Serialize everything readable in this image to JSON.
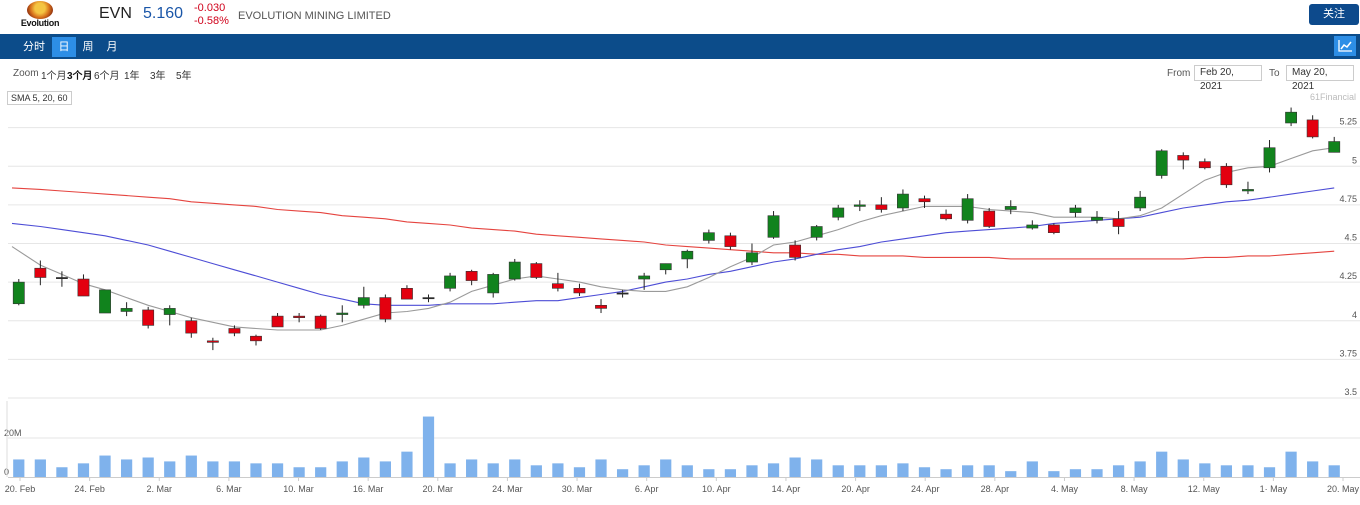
{
  "header": {
    "logo_text": "Evolution",
    "ticker": "EVN",
    "price": "5.160",
    "change": "-0.030",
    "change_pct": "-0.58%",
    "company": "EVOLUTION MINING LIMITED",
    "follow_label": "关注"
  },
  "nav": {
    "tabs": [
      "分时",
      "日",
      "周",
      "月"
    ],
    "active_tab": "日",
    "chart_icon": "line-chart-icon"
  },
  "zoom": {
    "label": "Zoom",
    "options": [
      "1个月",
      "3个月",
      "6个月",
      "1年",
      "3年",
      "5年"
    ],
    "active": "3个月"
  },
  "range": {
    "from_label": "From",
    "from_value": "Feb 20, 2021",
    "to_label": "To",
    "to_value": "May 20, 2021"
  },
  "sma_label": "SMA 5, 20, 60",
  "credit": "61Financial",
  "colors": {
    "up": "#11831d",
    "down": "#e3000f",
    "sma5": "#9a9a9a",
    "sma20": "#4d4dd6",
    "sma60": "#e5443f",
    "volume": "#7fb2ec",
    "nav": "#0c4c8a"
  },
  "chart_data": {
    "type": "candlestick",
    "ylim": [
      3.5,
      5.4
    ],
    "y_ticks": [
      "5.25",
      "5",
      "4.75",
      "4.5",
      "4.25",
      "4",
      "3.75",
      "3.5"
    ],
    "volume_ticks": [
      "20M",
      "0"
    ],
    "x_ticks": [
      "20. Feb",
      "24. Feb",
      "2. Mar",
      "6. Mar",
      "10. Mar",
      "16. Mar",
      "20. Mar",
      "24. Mar",
      "30. Mar",
      "6. Apr",
      "10. Apr",
      "14. Apr",
      "20. Apr",
      "24. Apr",
      "28. Apr",
      "4. May",
      "8. May",
      "12. May",
      "1· May",
      "20. May"
    ],
    "candles": [
      {
        "o": 4.11,
        "h": 4.27,
        "l": 4.1,
        "c": 4.25
      },
      {
        "o": 4.34,
        "h": 4.39,
        "l": 4.23,
        "c": 4.28
      },
      {
        "o": 4.28,
        "h": 4.32,
        "l": 4.22,
        "c": 4.28
      },
      {
        "o": 4.27,
        "h": 4.3,
        "l": 4.16,
        "c": 4.16
      },
      {
        "o": 4.05,
        "h": 4.2,
        "l": 4.05,
        "c": 4.2
      },
      {
        "o": 4.06,
        "h": 4.12,
        "l": 4.03,
        "c": 4.08
      },
      {
        "o": 4.07,
        "h": 4.09,
        "l": 3.95,
        "c": 3.97
      },
      {
        "o": 4.04,
        "h": 4.1,
        "l": 3.97,
        "c": 4.08
      },
      {
        "o": 4.0,
        "h": 4.02,
        "l": 3.89,
        "c": 3.92
      },
      {
        "o": 3.87,
        "h": 3.89,
        "l": 3.81,
        "c": 3.86
      },
      {
        "o": 3.95,
        "h": 3.97,
        "l": 3.9,
        "c": 3.92
      },
      {
        "o": 3.9,
        "h": 3.91,
        "l": 3.84,
        "c": 3.87
      },
      {
        "o": 4.03,
        "h": 4.05,
        "l": 3.96,
        "c": 3.96
      },
      {
        "o": 4.03,
        "h": 4.05,
        "l": 3.99,
        "c": 4.02
      },
      {
        "o": 4.03,
        "h": 4.04,
        "l": 3.94,
        "c": 3.95
      },
      {
        "o": 4.04,
        "h": 4.1,
        "l": 3.99,
        "c": 4.05
      },
      {
        "o": 4.1,
        "h": 4.22,
        "l": 4.08,
        "c": 4.15
      },
      {
        "o": 4.15,
        "h": 4.17,
        "l": 3.99,
        "c": 4.01
      },
      {
        "o": 4.21,
        "h": 4.23,
        "l": 4.14,
        "c": 4.14
      },
      {
        "o": 4.15,
        "h": 4.17,
        "l": 4.12,
        "c": 4.15
      },
      {
        "o": 4.21,
        "h": 4.31,
        "l": 4.19,
        "c": 4.29
      },
      {
        "o": 4.32,
        "h": 4.33,
        "l": 4.23,
        "c": 4.26
      },
      {
        "o": 4.18,
        "h": 4.31,
        "l": 4.15,
        "c": 4.3
      },
      {
        "o": 4.27,
        "h": 4.4,
        "l": 4.26,
        "c": 4.38
      },
      {
        "o": 4.37,
        "h": 4.38,
        "l": 4.27,
        "c": 4.28
      },
      {
        "o": 4.24,
        "h": 4.31,
        "l": 4.19,
        "c": 4.21
      },
      {
        "o": 4.21,
        "h": 4.24,
        "l": 4.16,
        "c": 4.18
      },
      {
        "o": 4.1,
        "h": 4.14,
        "l": 4.05,
        "c": 4.08
      },
      {
        "o": 4.18,
        "h": 4.2,
        "l": 4.15,
        "c": 4.18
      },
      {
        "o": 4.27,
        "h": 4.31,
        "l": 4.2,
        "c": 4.29
      },
      {
        "o": 4.33,
        "h": 4.37,
        "l": 4.3,
        "c": 4.37
      },
      {
        "o": 4.4,
        "h": 4.46,
        "l": 4.34,
        "c": 4.45
      },
      {
        "o": 4.52,
        "h": 4.59,
        "l": 4.5,
        "c": 4.57
      },
      {
        "o": 4.55,
        "h": 4.57,
        "l": 4.46,
        "c": 4.48
      },
      {
        "o": 4.38,
        "h": 4.5,
        "l": 4.36,
        "c": 4.44
      },
      {
        "o": 4.54,
        "h": 4.71,
        "l": 4.53,
        "c": 4.68
      },
      {
        "o": 4.49,
        "h": 4.52,
        "l": 4.39,
        "c": 4.41
      },
      {
        "o": 4.54,
        "h": 4.62,
        "l": 4.52,
        "c": 4.61
      },
      {
        "o": 4.67,
        "h": 4.75,
        "l": 4.65,
        "c": 4.73
      },
      {
        "o": 4.74,
        "h": 4.78,
        "l": 4.71,
        "c": 4.75
      },
      {
        "o": 4.75,
        "h": 4.8,
        "l": 4.7,
        "c": 4.72
      },
      {
        "o": 4.73,
        "h": 4.85,
        "l": 4.71,
        "c": 4.82
      },
      {
        "o": 4.79,
        "h": 4.81,
        "l": 4.73,
        "c": 4.77
      },
      {
        "o": 4.69,
        "h": 4.72,
        "l": 4.65,
        "c": 4.66
      },
      {
        "o": 4.65,
        "h": 4.82,
        "l": 4.63,
        "c": 4.79
      },
      {
        "o": 4.71,
        "h": 4.73,
        "l": 4.6,
        "c": 4.61
      },
      {
        "o": 4.72,
        "h": 4.78,
        "l": 4.69,
        "c": 4.74
      },
      {
        "o": 4.6,
        "h": 4.65,
        "l": 4.59,
        "c": 4.62
      },
      {
        "o": 4.62,
        "h": 4.63,
        "l": 4.56,
        "c": 4.57
      },
      {
        "o": 4.7,
        "h": 4.75,
        "l": 4.67,
        "c": 4.73
      },
      {
        "o": 4.65,
        "h": 4.71,
        "l": 4.63,
        "c": 4.67
      },
      {
        "o": 4.66,
        "h": 4.71,
        "l": 4.56,
        "c": 4.61
      },
      {
        "o": 4.73,
        "h": 4.84,
        "l": 4.71,
        "c": 4.8
      },
      {
        "o": 4.94,
        "h": 5.11,
        "l": 4.92,
        "c": 5.1
      },
      {
        "o": 5.07,
        "h": 5.09,
        "l": 4.98,
        "c": 5.04
      },
      {
        "o": 5.03,
        "h": 5.05,
        "l": 4.98,
        "c": 4.99
      },
      {
        "o": 5.0,
        "h": 5.02,
        "l": 4.86,
        "c": 4.88
      },
      {
        "o": 4.84,
        "h": 4.9,
        "l": 4.82,
        "c": 4.85
      },
      {
        "o": 4.99,
        "h": 5.17,
        "l": 4.96,
        "c": 5.12
      },
      {
        "o": 5.28,
        "h": 5.38,
        "l": 5.26,
        "c": 5.35
      },
      {
        "o": 5.3,
        "h": 5.33,
        "l": 5.18,
        "c": 5.19
      },
      {
        "o": 5.09,
        "h": 5.19,
        "l": 5.09,
        "c": 5.16
      }
    ],
    "volume_millions": [
      9,
      9,
      5,
      7,
      11,
      9,
      10,
      8,
      11,
      8,
      8,
      7,
      7,
      5,
      5,
      8,
      10,
      8,
      13,
      31,
      7,
      9,
      7,
      9,
      6,
      7,
      5,
      9,
      4,
      6,
      9,
      6,
      4,
      4,
      6,
      7,
      10,
      9,
      6,
      6,
      6,
      7,
      5,
      4,
      6,
      6,
      3,
      8,
      3,
      4,
      4,
      6,
      8,
      13,
      9,
      7,
      6,
      6,
      5,
      13,
      8,
      6
    ],
    "sma5": [
      4.48,
      4.36,
      4.3,
      4.24,
      4.2,
      4.15,
      4.1,
      4.06,
      4.02,
      3.99,
      3.96,
      3.95,
      3.94,
      3.94,
      3.94,
      3.97,
      4.01,
      4.05,
      4.06,
      4.08,
      4.12,
      4.19,
      4.23,
      4.27,
      4.29,
      4.27,
      4.25,
      4.22,
      4.2,
      4.19,
      4.19,
      4.22,
      4.28,
      4.35,
      4.41,
      4.49,
      4.51,
      4.55,
      4.59,
      4.64,
      4.68,
      4.71,
      4.74,
      4.74,
      4.74,
      4.72,
      4.71,
      4.7,
      4.67,
      4.67,
      4.67,
      4.66,
      4.68,
      4.73,
      4.82,
      4.91,
      4.96,
      4.99,
      5.0,
      5.05,
      5.1,
      5.12
    ],
    "sma20": [
      4.63,
      4.61,
      4.59,
      4.57,
      4.55,
      4.52,
      4.49,
      4.45,
      4.41,
      4.37,
      4.33,
      4.29,
      4.25,
      4.21,
      4.17,
      4.14,
      4.11,
      4.1,
      4.1,
      4.1,
      4.11,
      4.11,
      4.11,
      4.12,
      4.13,
      4.13,
      4.15,
      4.17,
      4.19,
      4.22,
      4.25,
      4.27,
      4.3,
      4.32,
      4.35,
      4.38,
      4.4,
      4.43,
      4.46,
      4.48,
      4.51,
      4.53,
      4.55,
      4.57,
      4.58,
      4.59,
      4.6,
      4.61,
      4.63,
      4.64,
      4.65,
      4.66,
      4.67,
      4.7,
      4.73,
      4.75,
      4.77,
      4.78,
      4.8,
      4.82,
      4.84,
      4.86
    ],
    "sma60": [
      4.86,
      4.85,
      4.84,
      4.83,
      4.82,
      4.81,
      4.8,
      4.79,
      4.77,
      4.76,
      4.75,
      4.74,
      4.72,
      4.71,
      4.7,
      4.68,
      4.67,
      4.66,
      4.64,
      4.63,
      4.62,
      4.6,
      4.59,
      4.58,
      4.56,
      4.55,
      4.54,
      4.53,
      4.52,
      4.51,
      4.49,
      4.48,
      4.47,
      4.46,
      4.45,
      4.44,
      4.44,
      4.43,
      4.43,
      4.42,
      4.42,
      4.42,
      4.41,
      4.41,
      4.41,
      4.41,
      4.4,
      4.4,
      4.4,
      4.4,
      4.4,
      4.4,
      4.4,
      4.4,
      4.4,
      4.41,
      4.41,
      4.42,
      4.42,
      4.43,
      4.44,
      4.45
    ]
  }
}
